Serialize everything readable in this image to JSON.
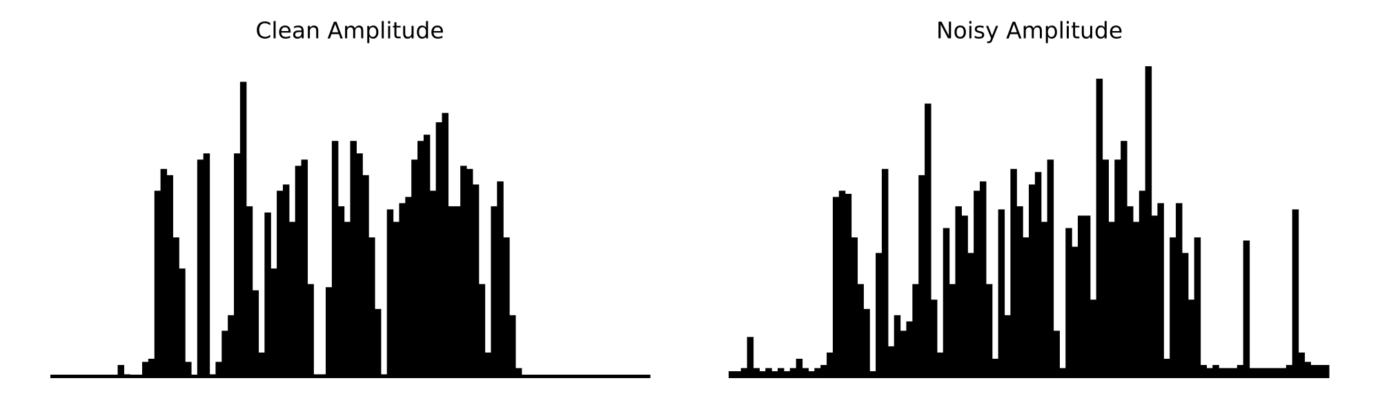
{
  "chart_data": [
    {
      "type": "area",
      "title": "Clean Amplitude",
      "color": "#000000",
      "ylim": [
        0,
        1
      ],
      "values": [
        0.005,
        0.005,
        0.005,
        0.005,
        0.005,
        0.005,
        0.005,
        0.005,
        0.005,
        0.005,
        0.005,
        0.04,
        0.01,
        0.005,
        0.005,
        0.05,
        0.06,
        0.6,
        0.67,
        0.65,
        0.45,
        0.35,
        0.05,
        0.005,
        0.7,
        0.72,
        0.01,
        0.05,
        0.15,
        0.2,
        0.72,
        0.95,
        0.55,
        0.28,
        0.08,
        0.53,
        0.35,
        0.6,
        0.62,
        0.5,
        0.68,
        0.7,
        0.3,
        0.01,
        0.01,
        0.29,
        0.76,
        0.55,
        0.5,
        0.76,
        0.72,
        0.65,
        0.45,
        0.22,
        0.01,
        0.54,
        0.5,
        0.56,
        0.58,
        0.7,
        0.76,
        0.78,
        0.6,
        0.82,
        0.85,
        0.55,
        0.55,
        0.68,
        0.67,
        0.62,
        0.3,
        0.08,
        0.55,
        0.63,
        0.45,
        0.2,
        0.03,
        0.005,
        0.005,
        0.005,
        0.005,
        0.005,
        0.005,
        0.005,
        0.005,
        0.005,
        0.005,
        0.005,
        0.005,
        0.005,
        0.005,
        0.005,
        0.005,
        0.005,
        0.005,
        0.005,
        0.005,
        0.005
      ]
    },
    {
      "type": "area",
      "title": "Noisy Amplitude",
      "color": "#000000",
      "ylim": [
        0,
        1
      ],
      "values": [
        0.02,
        0.02,
        0.03,
        0.13,
        0.03,
        0.02,
        0.03,
        0.02,
        0.03,
        0.02,
        0.03,
        0.06,
        0.03,
        0.02,
        0.03,
        0.04,
        0.08,
        0.58,
        0.6,
        0.59,
        0.45,
        0.3,
        0.22,
        0.02,
        0.4,
        0.67,
        0.1,
        0.2,
        0.15,
        0.18,
        0.3,
        0.65,
        0.88,
        0.25,
        0.08,
        0.48,
        0.3,
        0.55,
        0.52,
        0.4,
        0.6,
        0.63,
        0.3,
        0.06,
        0.54,
        0.2,
        0.67,
        0.55,
        0.45,
        0.62,
        0.66,
        0.5,
        0.7,
        0.15,
        0.03,
        0.48,
        0.42,
        0.52,
        0.52,
        0.25,
        0.96,
        0.7,
        0.5,
        0.7,
        0.76,
        0.55,
        0.5,
        0.6,
        1.0,
        0.52,
        0.56,
        0.06,
        0.45,
        0.56,
        0.4,
        0.25,
        0.45,
        0.04,
        0.03,
        0.04,
        0.03,
        0.03,
        0.03,
        0.04,
        0.44,
        0.03,
        0.03,
        0.03,
        0.03,
        0.03,
        0.03,
        0.04,
        0.54,
        0.08,
        0.05,
        0.04,
        0.04,
        0.04
      ]
    }
  ]
}
